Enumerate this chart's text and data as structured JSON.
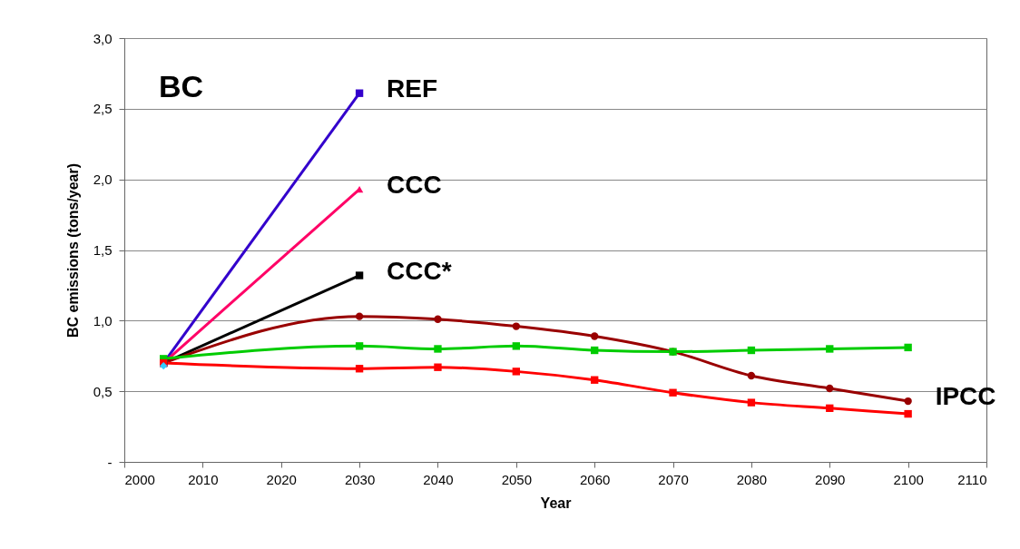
{
  "chart_data": {
    "type": "line",
    "xlabel": "Year",
    "ylabel": "BC emissions (tons/year)",
    "annotations": [
      "BC"
    ],
    "xlim": [
      2000,
      2110
    ],
    "xticks": [
      2000,
      2010,
      2020,
      2030,
      2040,
      2050,
      2060,
      2070,
      2080,
      2090,
      2100,
      2110
    ],
    "ylim": [
      0,
      3
    ],
    "yticks": [
      {
        "value": 0,
        "label": "-"
      },
      {
        "value": 0.5,
        "label": "0,5"
      },
      {
        "value": 1,
        "label": "1,0"
      },
      {
        "value": 1.5,
        "label": "1,5"
      },
      {
        "value": 2,
        "label": "2,0"
      },
      {
        "value": 2.5,
        "label": "2,5"
      },
      {
        "value": 3,
        "label": "3,0"
      }
    ],
    "grid": "y",
    "line_style": "solid",
    "series": [
      {
        "name": "REF",
        "color": "#3300cc",
        "marker": "square",
        "x": [
          2005,
          2030
        ],
        "values": [
          0.7,
          2.61
        ]
      },
      {
        "name": "CCC",
        "color": "#ff0066",
        "marker": "triangle",
        "x": [
          2005,
          2030
        ],
        "values": [
          0.7,
          1.93
        ]
      },
      {
        "name": "CCC*",
        "color": "#000000",
        "marker": "square",
        "x": [
          2005,
          2030
        ],
        "values": [
          0.7,
          1.32
        ]
      },
      {
        "name": "IPCC",
        "color": "#990000",
        "marker": "circle",
        "x": [
          2005,
          2030,
          2040,
          2050,
          2060,
          2070,
          2080,
          2090,
          2100
        ],
        "values": [
          0.7,
          1.03,
          1.01,
          0.96,
          0.89,
          0.78,
          0.61,
          0.52,
          0.43
        ]
      },
      {
        "color": "#00cc00",
        "marker": "square",
        "x": [
          2005,
          2030,
          2040,
          2050,
          2060,
          2070,
          2080,
          2090,
          2100
        ],
        "values": [
          0.73,
          0.82,
          0.8,
          0.82,
          0.79,
          0.78,
          0.79,
          0.8,
          0.81
        ]
      },
      {
        "color": "#ff0000",
        "marker": "square",
        "x": [
          2005,
          2030,
          2040,
          2050,
          2060,
          2070,
          2080,
          2090,
          2100
        ],
        "values": [
          0.7,
          0.66,
          0.67,
          0.64,
          0.58,
          0.49,
          0.42,
          0.38,
          0.34
        ]
      },
      {
        "type": "scatter",
        "color": "#33ccff",
        "marker": "diamond",
        "x": [
          2005
        ],
        "values": [
          0.68
        ]
      }
    ]
  }
}
